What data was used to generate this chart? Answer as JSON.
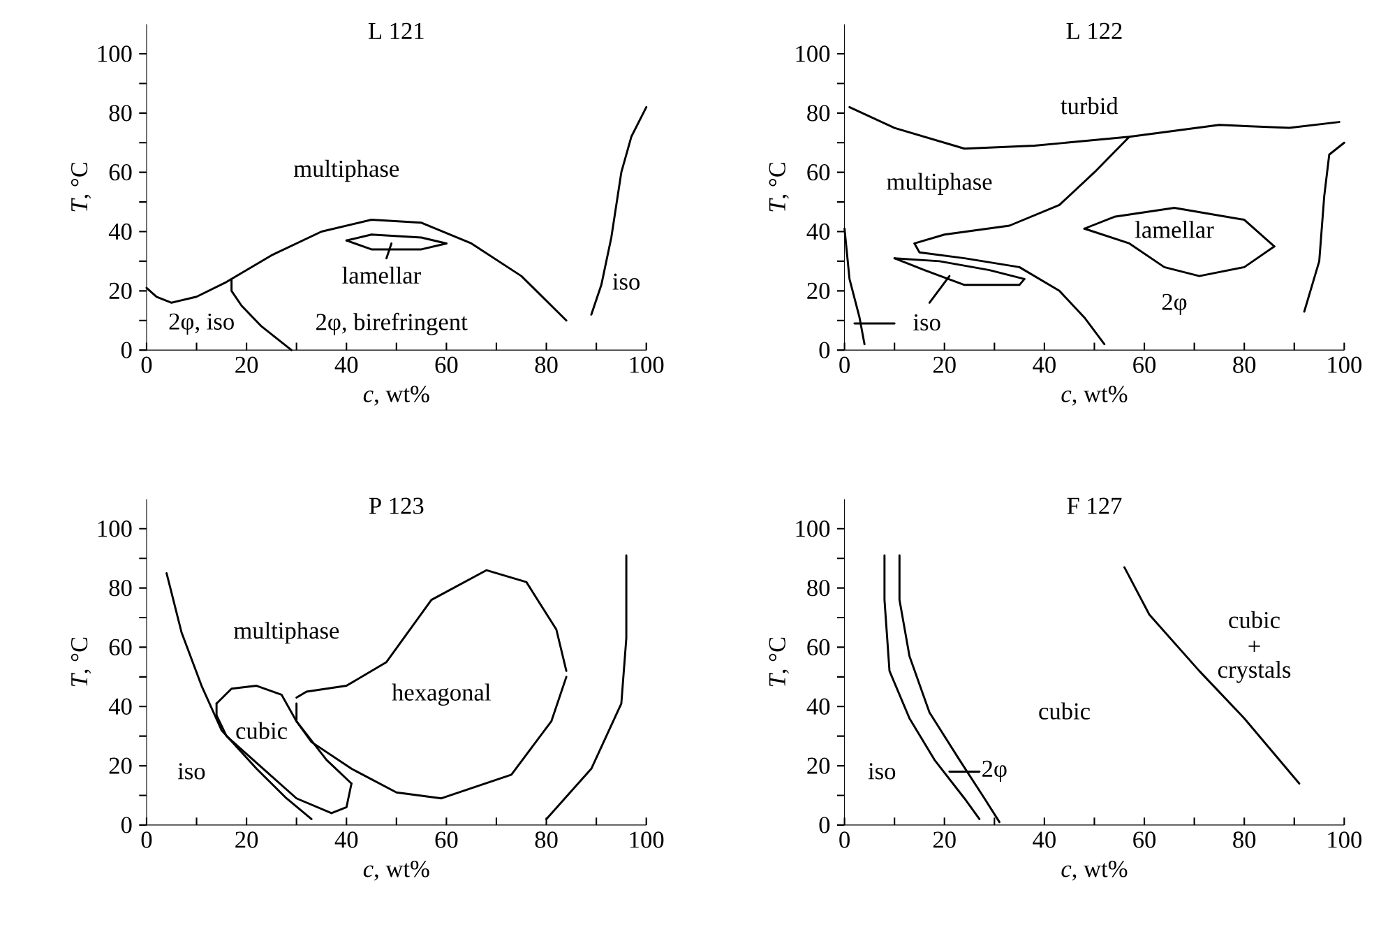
{
  "chart_data": [
    {
      "type": "line",
      "title": "L 121",
      "xlabel": "*c*, wt%",
      "ylabel": "*T*, °C",
      "xlim": [
        0,
        100
      ],
      "ylim": [
        0,
        110
      ],
      "xticks": [
        0,
        {
          "value": 10,
          "label": null
        },
        20,
        {
          "value": 30,
          "label": null
        },
        40,
        {
          "value": 50,
          "label": null
        },
        60,
        {
          "value": 70,
          "label": null
        },
        80,
        {
          "value": 90,
          "label": null
        },
        100
      ],
      "yticks": [
        0,
        {
          "value": 10,
          "label": null
        },
        20,
        {
          "value": 30,
          "label": null
        },
        40,
        {
          "value": 50,
          "label": null
        },
        60,
        {
          "value": 70,
          "label": null
        },
        80,
        {
          "value": 90,
          "label": null
        },
        100
      ],
      "series": [
        {
          "color": "#000000",
          "x": [
            0,
            2,
            5,
            10,
            16,
            25,
            35,
            45,
            55,
            65,
            75,
            84
          ],
          "values": [
            21,
            18,
            16,
            18,
            23,
            32,
            40,
            44,
            43,
            36,
            25,
            10
          ]
        },
        {
          "color": "#000000",
          "x": [
            17,
            17,
            19,
            23,
            29
          ],
          "values": [
            24,
            20,
            15,
            8,
            0
          ]
        },
        {
          "color": "#000000",
          "x": [
            40,
            45,
            55,
            60
          ],
          "values": [
            37,
            39,
            38,
            36
          ]
        },
        {
          "color": "#000000",
          "x": [
            40,
            45,
            55,
            60
          ],
          "values": [
            37,
            34,
            34,
            36
          ]
        },
        {
          "color": "#000000",
          "x": [
            49,
            48
          ],
          "values": [
            36,
            31
          ]
        },
        {
          "color": "#000000",
          "x": [
            89,
            91,
            93,
            95,
            97,
            100
          ],
          "values": [
            12,
            22,
            38,
            60,
            72,
            82
          ]
        }
      ],
      "annotations": [
        "multiphase",
        "lamellar",
        "2φ, birefringent",
        "2φ, iso",
        "iso"
      ]
    },
    {
      "type": "line",
      "title": "L 122",
      "xlabel": "*c*, wt%",
      "ylabel": "*T*, °C",
      "xlim": [
        0,
        100
      ],
      "ylim": [
        0,
        110
      ],
      "xticks": [
        0,
        {
          "value": 10,
          "label": null
        },
        20,
        {
          "value": 30,
          "label": null
        },
        40,
        {
          "value": 50,
          "label": null
        },
        60,
        {
          "value": 70,
          "label": null
        },
        80,
        {
          "value": 90,
          "label": null
        },
        100
      ],
      "yticks": [
        0,
        {
          "value": 10,
          "label": null
        },
        20,
        {
          "value": 30,
          "label": null
        },
        40,
        {
          "value": 50,
          "label": null
        },
        60,
        {
          "value": 70,
          "label": null
        },
        80,
        {
          "value": 90,
          "label": null
        },
        100
      ],
      "series": [
        {
          "color": "#000000",
          "x": [
            1,
            10,
            24,
            38,
            57,
            75,
            89,
            99
          ],
          "values": [
            82,
            75,
            68,
            69,
            72,
            76,
            75,
            77
          ]
        },
        {
          "color": "#000000",
          "x": [
            57,
            50,
            43,
            33,
            20,
            14
          ],
          "values": [
            72,
            60,
            49,
            42,
            39,
            36
          ]
        },
        {
          "color": "#000000",
          "x": [
            14,
            15,
            24,
            35,
            43,
            48,
            52
          ],
          "values": [
            36,
            33,
            31,
            28,
            20,
            11,
            2
          ]
        },
        {
          "color": "#000000",
          "x": [
            10,
            19,
            29,
            36
          ],
          "values": [
            31,
            30,
            27,
            24
          ]
        },
        {
          "color": "#000000",
          "x": [
            10,
            16,
            24,
            35,
            36
          ],
          "values": [
            31,
            27,
            22,
            22,
            24
          ]
        },
        {
          "color": "#000000",
          "x": [
            21,
            17
          ],
          "values": [
            25,
            16
          ]
        },
        {
          "color": "#000000",
          "x": [
            48,
            54,
            66,
            80,
            86
          ],
          "values": [
            41,
            45,
            48,
            44,
            35
          ]
        },
        {
          "color": "#000000",
          "x": [
            48,
            57,
            64,
            71,
            80,
            86
          ],
          "values": [
            41,
            36,
            28,
            25,
            28,
            35
          ]
        },
        {
          "color": "#000000",
          "x": [
            92,
            95,
            96,
            97,
            100
          ],
          "values": [
            13,
            30,
            52,
            66,
            70
          ]
        },
        {
          "color": "#000000",
          "x": [
            0,
            1,
            3,
            4
          ],
          "values": [
            41,
            24,
            11,
            2
          ]
        },
        {
          "color": "#000000",
          "x": [
            2,
            10
          ],
          "values": [
            9,
            9
          ]
        }
      ],
      "annotations": [
        "turbid",
        "multiphase",
        "lamellar",
        "2φ",
        "iso"
      ]
    },
    {
      "type": "line",
      "title": "P 123",
      "xlabel": "*c*, wt%",
      "ylabel": "*T*, °C",
      "xlim": [
        0,
        100
      ],
      "ylim": [
        0,
        110
      ],
      "xticks": [
        0,
        {
          "value": 10,
          "label": null
        },
        20,
        {
          "value": 30,
          "label": null
        },
        40,
        {
          "value": 50,
          "label": null
        },
        60,
        {
          "value": 70,
          "label": null
        },
        80,
        {
          "value": 90,
          "label": null
        },
        100
      ],
      "yticks": [
        0,
        {
          "value": 10,
          "label": null
        },
        20,
        {
          "value": 30,
          "label": null
        },
        40,
        {
          "value": 50,
          "label": null
        },
        60,
        {
          "value": 70,
          "label": null
        },
        80,
        {
          "value": 90,
          "label": null
        },
        100
      ],
      "series": [
        {
          "color": "#000000",
          "x": [
            4,
            7,
            11,
            15,
            22,
            28,
            33
          ],
          "values": [
            85,
            65,
            47,
            32,
            19,
            9,
            2
          ]
        },
        {
          "color": "#000000",
          "x": [
            14,
            17,
            22,
            27,
            30,
            36,
            41
          ],
          "values": [
            41,
            46,
            47,
            44,
            35,
            22,
            14
          ]
        },
        {
          "color": "#000000",
          "x": [
            14,
            14,
            16,
            22,
            30,
            37,
            40,
            41
          ],
          "values": [
            41,
            37,
            30,
            21,
            9,
            4,
            6,
            14
          ]
        },
        {
          "color": "#000000",
          "x": [
            30,
            32,
            40,
            48,
            57,
            68,
            76,
            82,
            84
          ],
          "values": [
            43,
            45,
            47,
            55,
            76,
            86,
            82,
            66,
            52
          ]
        },
        {
          "color": "#000000",
          "x": [
            30,
            30,
            33,
            41,
            50,
            59,
            73,
            81,
            84
          ],
          "values": [
            41,
            35,
            28,
            19,
            11,
            9,
            17,
            35,
            50
          ]
        },
        {
          "color": "#000000",
          "x": [
            80,
            89,
            95,
            96,
            96
          ],
          "values": [
            2,
            19,
            41,
            63,
            91
          ]
        }
      ],
      "annotations": [
        "multiphase",
        "cubic",
        "hexagonal",
        "iso"
      ]
    },
    {
      "type": "line",
      "title": "F 127",
      "xlabel": "*c*, wt%",
      "ylabel": "*T*, °C",
      "xlim": [
        0,
        100
      ],
      "ylim": [
        0,
        110
      ],
      "xticks": [
        0,
        {
          "value": 10,
          "label": null
        },
        20,
        {
          "value": 30,
          "label": null
        },
        40,
        {
          "value": 50,
          "label": null
        },
        60,
        {
          "value": 70,
          "label": null
        },
        80,
        {
          "value": 90,
          "label": null
        },
        100
      ],
      "yticks": [
        0,
        {
          "value": 10,
          "label": null
        },
        20,
        {
          "value": 30,
          "label": null
        },
        40,
        {
          "value": 50,
          "label": null
        },
        60,
        {
          "value": 70,
          "label": null
        },
        80,
        {
          "value": 90,
          "label": null
        },
        100
      ],
      "series": [
        {
          "color": "#000000",
          "x": [
            8,
            8,
            9,
            13,
            18,
            24,
            27
          ],
          "values": [
            91,
            76,
            52,
            36,
            22,
            9,
            2
          ]
        },
        {
          "color": "#000000",
          "x": [
            11,
            11,
            13,
            17,
            23,
            28,
            31
          ],
          "values": [
            91,
            76,
            57,
            38,
            22,
            9,
            1
          ]
        },
        {
          "color": "#000000",
          "x": [
            56,
            61,
            71,
            80,
            91
          ],
          "values": [
            87,
            71,
            52,
            36,
            14
          ]
        },
        {
          "color": "#000000",
          "x": [
            21,
            27
          ],
          "values": [
            18,
            18
          ]
        }
      ],
      "annotations": [
        "iso",
        "2φ",
        "cubic",
        "cubic",
        "+",
        "crystals"
      ]
    }
  ]
}
